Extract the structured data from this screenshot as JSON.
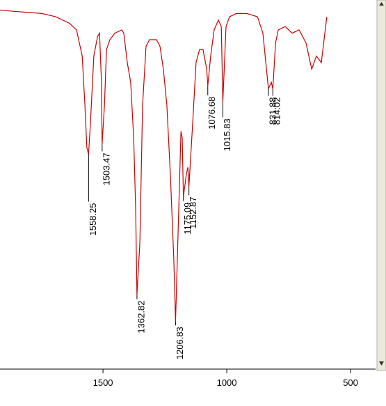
{
  "chart_data": {
    "type": "line",
    "xlim": [
      1916,
      399
    ],
    "ylim": [
      0,
      100
    ],
    "xticks": [
      1500,
      1000,
      500
    ],
    "series": [
      {
        "color": "#cc0000",
        "x": [
          1916,
          1747,
          1691,
          1635,
          1607,
          1584,
          1573,
          1565,
          1558.25,
          1551,
          1537,
          1522,
          1514,
          1506,
          1503.47,
          1494,
          1486,
          1472,
          1452,
          1424,
          1416,
          1402,
          1388,
          1376,
          1368,
          1362.82,
          1351,
          1340,
          1326,
          1312,
          1284,
          1270,
          1256,
          1242,
          1228,
          1214,
          1206.83,
          1194,
          1185,
          1180,
          1175.09,
          1163,
          1157,
          1152.87,
          1138,
          1124,
          1110,
          1096,
          1081,
          1076.68,
          1065,
          1051,
          1034,
          1022,
          1015.83,
          1003,
          989,
          961,
          919,
          876,
          854,
          837,
          831.88,
          820,
          814.02,
          803,
          792,
          764,
          736,
          708,
          680,
          657,
          638,
          618,
          596
        ],
        "values": [
          99,
          98,
          97,
          95,
          93,
          85,
          70,
          57,
          55,
          64,
          85,
          91,
          92,
          77,
          58,
          70,
          87,
          90,
          92,
          93,
          92,
          83,
          77,
          60,
          38,
          12,
          28,
          70,
          88,
          90,
          90,
          88,
          81,
          70,
          49,
          23,
          4,
          38,
          62,
          60,
          42,
          49,
          51,
          45,
          64,
          83,
          87,
          87,
          81,
          76,
          85,
          93,
          96,
          94,
          71,
          94,
          97,
          98,
          98,
          97,
          92,
          79,
          75,
          77,
          75,
          89,
          93,
          94,
          92,
          93,
          89,
          81,
          85,
          83,
          97
        ]
      }
    ],
    "peaks": [
      {
        "x": 1558.25,
        "y": 55
      },
      {
        "x": 1503.47,
        "y": 58
      },
      {
        "x": 1362.82,
        "y": 12
      },
      {
        "x": 1206.83,
        "y": 4
      },
      {
        "x": 1175.09,
        "y": 42
      },
      {
        "x": 1152.87,
        "y": 45
      },
      {
        "x": 1076.68,
        "y": 76
      },
      {
        "x": 1015.83,
        "y": 71
      },
      {
        "x": 831.88,
        "y": 75
      },
      {
        "x": 814.02,
        "y": 75
      }
    ]
  }
}
